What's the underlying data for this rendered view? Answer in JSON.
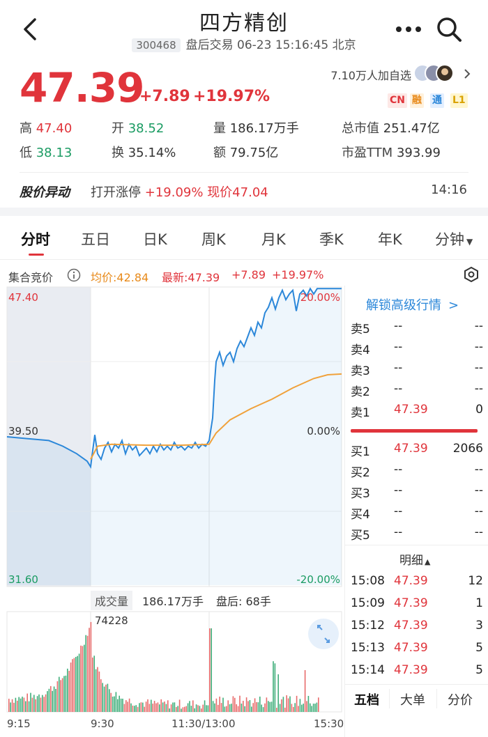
{
  "header": {
    "title": "四方精创",
    "code": "300468",
    "status": "盘后交易 06-23 15:16:45 北京"
  },
  "quote": {
    "price": "47.39",
    "change": "+7.89",
    "change_pct": "+19.97%",
    "followers": "7.10万人加自选",
    "tags": [
      "CN",
      "融",
      "通",
      "L1"
    ],
    "stats": [
      {
        "label": "高",
        "value": "47.40"
      },
      {
        "label": "开",
        "value": "38.52"
      },
      {
        "label": "量",
        "value": "186.17万手"
      },
      {
        "label": "总市值",
        "value": "251.47亿"
      },
      {
        "label": "低",
        "value": "38.13"
      },
      {
        "label": "换",
        "value": "35.14%"
      },
      {
        "label": "额",
        "value": "79.75亿"
      },
      {
        "label": "市盈TTM",
        "value": "393.99"
      }
    ]
  },
  "alert": {
    "label": "股价异动",
    "text_a": "打开涨停",
    "text_b": "+19.09%",
    "text_c": "现价47.04",
    "time": "14:16"
  },
  "tabs": [
    "分时",
    "五日",
    "日K",
    "周K",
    "月K",
    "季K",
    "年K",
    "分钟"
  ],
  "info": {
    "auction": "集合竞价",
    "avg": "均价:42.84",
    "latest": "最新:47.39",
    "chg": "+7.89",
    "pct": "+19.97%"
  },
  "chart_data": {
    "type": "line",
    "y_left_labels": [
      "47.40",
      "39.50",
      "31.60"
    ],
    "y_right_labels": [
      "20.00%",
      "0.00%",
      "-20.00%"
    ],
    "ylim": [
      31.6,
      47.4
    ],
    "series": [
      {
        "name": "最新",
        "color": "#2b87d9"
      },
      {
        "name": "均价",
        "color": "#f0a13a"
      }
    ],
    "price_points": [
      [
        0,
        39.5
      ],
      [
        30,
        39.4
      ],
      [
        60,
        39.3
      ],
      [
        80,
        39.0
      ],
      [
        100,
        38.6
      ],
      [
        115,
        38.2
      ],
      [
        120,
        37.9
      ],
      [
        122,
        38.5
      ],
      [
        126,
        39.6
      ],
      [
        130,
        38.6
      ],
      [
        135,
        38.3
      ],
      [
        140,
        38.9
      ],
      [
        145,
        39.2
      ],
      [
        150,
        38.7
      ],
      [
        155,
        39.1
      ],
      [
        160,
        38.9
      ],
      [
        165,
        39.3
      ],
      [
        170,
        38.6
      ],
      [
        175,
        39.1
      ],
      [
        180,
        38.8
      ],
      [
        185,
        39.0
      ],
      [
        190,
        38.5
      ],
      [
        195,
        38.7
      ],
      [
        200,
        38.9
      ],
      [
        205,
        38.6
      ],
      [
        210,
        39.0
      ],
      [
        215,
        38.7
      ],
      [
        220,
        39.1
      ],
      [
        225,
        38.8
      ],
      [
        230,
        39.0
      ],
      [
        235,
        38.8
      ],
      [
        240,
        39.2
      ],
      [
        245,
        38.9
      ],
      [
        250,
        39.0
      ],
      [
        255,
        38.8
      ],
      [
        260,
        39.0
      ],
      [
        265,
        38.9
      ],
      [
        270,
        39.2
      ],
      [
        275,
        38.9
      ],
      [
        280,
        39.1
      ],
      [
        285,
        39.0
      ],
      [
        290,
        39.3
      ],
      [
        295,
        40.5
      ],
      [
        298,
        42.5
      ],
      [
        300,
        43.5
      ],
      [
        305,
        44.0
      ],
      [
        310,
        43.3
      ],
      [
        315,
        43.8
      ],
      [
        320,
        44.0
      ],
      [
        325,
        43.5
      ],
      [
        330,
        44.2
      ],
      [
        335,
        44.6
      ],
      [
        340,
        44.3
      ],
      [
        345,
        44.8
      ],
      [
        350,
        45.3
      ],
      [
        355,
        44.9
      ],
      [
        360,
        45.6
      ],
      [
        365,
        45.3
      ],
      [
        370,
        46.1
      ],
      [
        375,
        46.4
      ],
      [
        380,
        46.9
      ],
      [
        385,
        46.3
      ],
      [
        390,
        46.9
      ],
      [
        395,
        47.3
      ],
      [
        400,
        46.8
      ],
      [
        405,
        47.1
      ],
      [
        410,
        47.3
      ],
      [
        415,
        46.2
      ],
      [
        420,
        47.1
      ],
      [
        425,
        47.3
      ],
      [
        430,
        47.0
      ],
      [
        435,
        47.39
      ],
      [
        440,
        47.1
      ],
      [
        445,
        47.39
      ],
      [
        450,
        47.39
      ],
      [
        460,
        47.39
      ],
      [
        470,
        47.39
      ],
      [
        480,
        47.39
      ]
    ],
    "avg_points": [
      [
        120,
        38.3
      ],
      [
        130,
        39.0
      ],
      [
        150,
        39.1
      ],
      [
        200,
        39.05
      ],
      [
        250,
        39.05
      ],
      [
        290,
        39.1
      ],
      [
        300,
        39.7
      ],
      [
        320,
        40.4
      ],
      [
        350,
        41.0
      ],
      [
        380,
        41.5
      ],
      [
        410,
        42.1
      ],
      [
        440,
        42.6
      ],
      [
        460,
        42.8
      ],
      [
        480,
        42.84
      ]
    ]
  },
  "orderbook": {
    "unlock": "解锁高级行情",
    "asks": [
      {
        "label": "卖5",
        "price": "--",
        "vol": "--"
      },
      {
        "label": "卖4",
        "price": "--",
        "vol": "--"
      },
      {
        "label": "卖3",
        "price": "--",
        "vol": "--"
      },
      {
        "label": "卖2",
        "price": "--",
        "vol": "--"
      },
      {
        "label": "卖1",
        "price": "47.39",
        "vol": "0"
      }
    ],
    "bids": [
      {
        "label": "买1",
        "price": "47.39",
        "vol": "2066"
      },
      {
        "label": "买2",
        "price": "--",
        "vol": "--"
      },
      {
        "label": "买3",
        "price": "--",
        "vol": "--"
      },
      {
        "label": "买4",
        "price": "--",
        "vol": "--"
      },
      {
        "label": "买5",
        "price": "--",
        "vol": "--"
      }
    ],
    "detail_label": "明细",
    "trades": [
      {
        "time": "15:08",
        "price": "47.39",
        "vol": "12"
      },
      {
        "time": "15:09",
        "price": "47.39",
        "vol": "1"
      },
      {
        "time": "15:12",
        "price": "47.39",
        "vol": "3"
      },
      {
        "time": "15:13",
        "price": "47.39",
        "vol": "5"
      },
      {
        "time": "15:14",
        "price": "47.39",
        "vol": "5"
      }
    ],
    "bottom_tabs": [
      "五档",
      "大单",
      "分价"
    ]
  },
  "volume": {
    "label": "成交量",
    "value": "186.17万手",
    "after": "盘后: 68手",
    "max_label": "74228"
  },
  "time_axis": [
    "9:15",
    "9:30",
    "11:30/13:00",
    "15:30"
  ]
}
